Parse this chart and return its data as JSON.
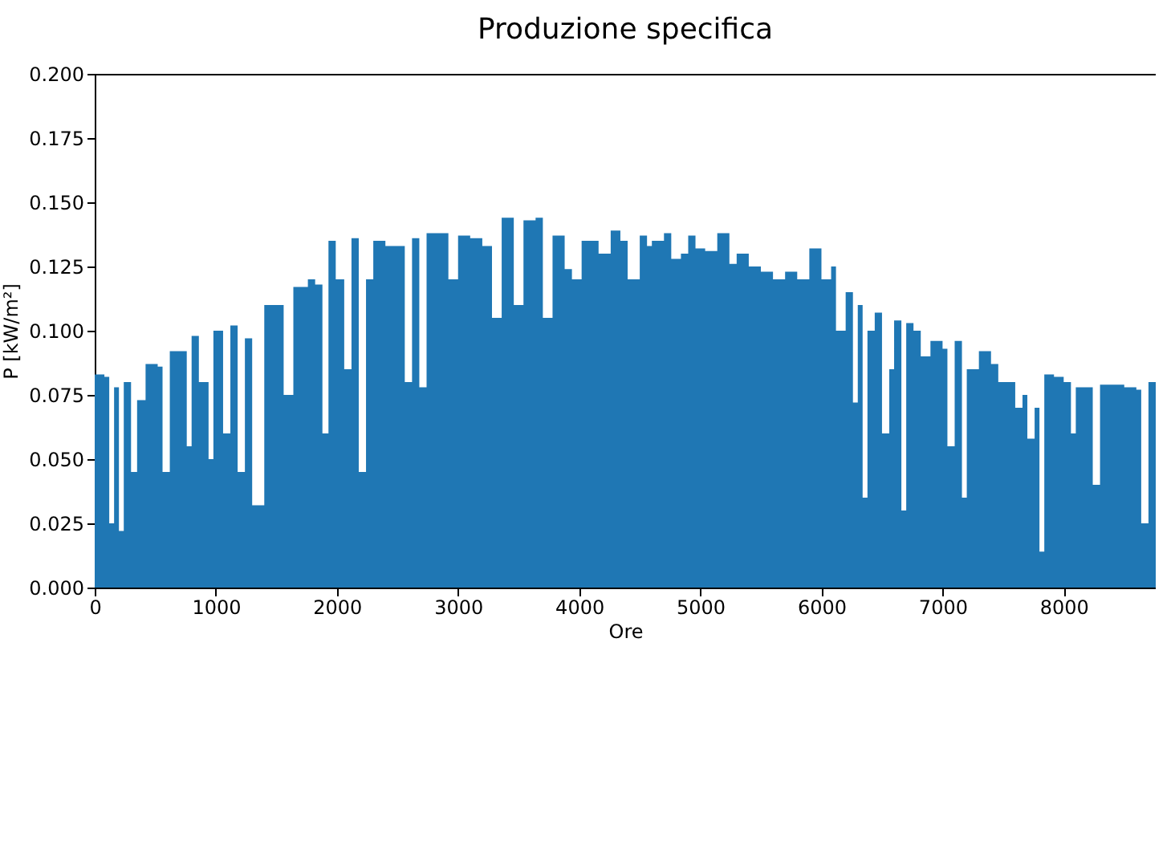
{
  "chart_data": {
    "type": "area",
    "title": "Produzione specifica",
    "xlabel": "Ore",
    "ylabel": "P [kW/m²]",
    "color": "#1f77b4",
    "x": [
      0,
      80,
      120,
      160,
      200,
      240,
      300,
      350,
      420,
      520,
      560,
      620,
      700,
      760,
      800,
      860,
      940,
      980,
      1060,
      1120,
      1180,
      1240,
      1300,
      1400,
      1500,
      1560,
      1640,
      1760,
      1820,
      1880,
      1930,
      1990,
      2060,
      2120,
      2180,
      2240,
      2300,
      2400,
      2500,
      2560,
      2620,
      2680,
      2740,
      2860,
      2920,
      3000,
      3100,
      3200,
      3280,
      3360,
      3460,
      3540,
      3640,
      3700,
      3780,
      3880,
      3940,
      4020,
      4100,
      4160,
      4260,
      4340,
      4400,
      4500,
      4560,
      4600,
      4700,
      4760,
      4840,
      4900,
      4960,
      5040,
      5140,
      5240,
      5300,
      5400,
      5500,
      5600,
      5700,
      5800,
      5900,
      6000,
      6080,
      6120,
      6200,
      6260,
      6300,
      6340,
      6380,
      6440,
      6500,
      6560,
      6600,
      6660,
      6700,
      6760,
      6820,
      6900,
      7000,
      7040,
      7100,
      7160,
      7200,
      7300,
      7400,
      7460,
      7520,
      7600,
      7660,
      7700,
      7760,
      7800,
      7840,
      7920,
      8000,
      8060,
      8100,
      8200,
      8240,
      8300,
      8400,
      8500,
      8600,
      8640,
      8700,
      8760
    ],
    "values": [
      0.083,
      0.082,
      0.025,
      0.078,
      0.022,
      0.08,
      0.045,
      0.073,
      0.087,
      0.086,
      0.045,
      0.092,
      0.092,
      0.055,
      0.098,
      0.08,
      0.05,
      0.1,
      0.06,
      0.102,
      0.045,
      0.097,
      0.032,
      0.11,
      0.11,
      0.075,
      0.117,
      0.12,
      0.118,
      0.06,
      0.135,
      0.12,
      0.085,
      0.136,
      0.045,
      0.12,
      0.135,
      0.133,
      0.133,
      0.08,
      0.136,
      0.078,
      0.138,
      0.138,
      0.12,
      0.137,
      0.136,
      0.133,
      0.105,
      0.144,
      0.11,
      0.143,
      0.144,
      0.105,
      0.137,
      0.124,
      0.12,
      0.135,
      0.135,
      0.13,
      0.139,
      0.135,
      0.12,
      0.137,
      0.133,
      0.135,
      0.138,
      0.128,
      0.13,
      0.137,
      0.132,
      0.131,
      0.138,
      0.126,
      0.13,
      0.125,
      0.123,
      0.12,
      0.123,
      0.12,
      0.132,
      0.12,
      0.125,
      0.1,
      0.115,
      0.072,
      0.11,
      0.035,
      0.1,
      0.107,
      0.06,
      0.085,
      0.104,
      0.03,
      0.103,
      0.1,
      0.09,
      0.096,
      0.093,
      0.055,
      0.096,
      0.035,
      0.085,
      0.092,
      0.087,
      0.08,
      0.08,
      0.07,
      0.075,
      0.058,
      0.07,
      0.014,
      0.083,
      0.082,
      0.08,
      0.06,
      0.078,
      0.078,
      0.04,
      0.079,
      0.079,
      0.078,
      0.077,
      0.025,
      0.08,
      0.08
    ],
    "xlim": [
      0,
      8760
    ],
    "xticks": [
      0,
      1000,
      2000,
      3000,
      4000,
      5000,
      6000,
      7000,
      8000
    ],
    "ylim": [
      0,
      0.2
    ],
    "yticks": [
      {
        "value": 0,
        "label": "0.000"
      },
      {
        "value": 0.025,
        "label": "0.025"
      },
      {
        "value": 0.05,
        "label": "0.050"
      },
      {
        "value": 0.075,
        "label": "0.075"
      },
      {
        "value": 0.1,
        "label": "0.100"
      },
      {
        "value": 0.125,
        "label": "0.125"
      },
      {
        "value": 0.15,
        "label": "0.150"
      },
      {
        "value": 0.175,
        "label": "0.175"
      },
      {
        "value": 0.2,
        "label": "0.200"
      }
    ]
  }
}
